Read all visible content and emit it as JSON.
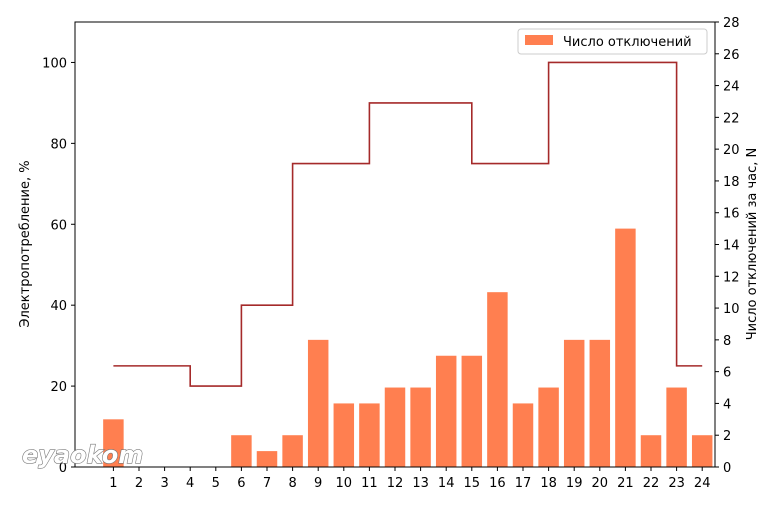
{
  "chart_data": {
    "type": "bar",
    "categories": [
      "1",
      "2",
      "3",
      "4",
      "5",
      "6",
      "7",
      "8",
      "9",
      "10",
      "11",
      "12",
      "13",
      "14",
      "15",
      "16",
      "17",
      "18",
      "19",
      "20",
      "21",
      "22",
      "23",
      "24"
    ],
    "series": [
      {
        "name": "Число отключений",
        "axis": "right",
        "type": "bar",
        "color": "#ff7f50",
        "values": [
          3,
          0,
          0,
          0,
          0,
          2,
          1,
          2,
          8,
          4,
          4,
          5,
          5,
          7,
          7,
          11,
          4,
          5,
          8,
          8,
          15,
          2,
          5,
          2
        ]
      },
      {
        "axis": "left",
        "type": "step",
        "color": "#a52a2a",
        "values": [
          25,
          25,
          25,
          20,
          20,
          40,
          40,
          75,
          75,
          75,
          90,
          90,
          90,
          90,
          75,
          75,
          75,
          100,
          100,
          100,
          100,
          100,
          25,
          25
        ]
      }
    ],
    "ylabel_left": "Электропотребление, %",
    "ylabel_right": "Число отключений за час, N",
    "xlabel": "",
    "ylim_left": [
      0,
      110
    ],
    "ylim_right": [
      0,
      28
    ],
    "yticks_left": [
      0,
      20,
      40,
      60,
      80,
      100
    ],
    "yticks_right": [
      0,
      2,
      4,
      6,
      8,
      10,
      12,
      14,
      16,
      18,
      20,
      22,
      24,
      26,
      28
    ],
    "xlim": [
      -0.5,
      24.5
    ],
    "legend": "top-right",
    "grid": false
  },
  "watermark": {
    "text": "eyaokom"
  }
}
